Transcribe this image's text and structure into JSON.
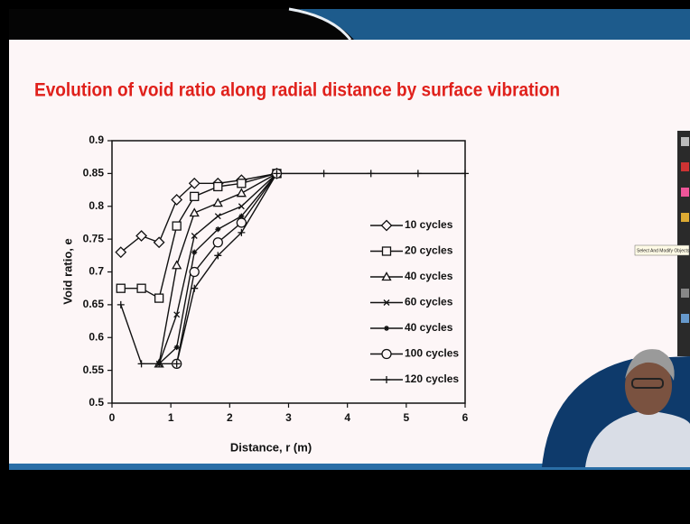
{
  "chart_data": {
    "type": "line",
    "title": "Evolution of void ratio along radial distance by surface vibration",
    "x_label": "Distance, r (m)",
    "y_label": "Void ratio, e",
    "x": [
      0.15,
      0.5,
      0.8,
      1.1,
      1.4,
      1.8,
      2.2,
      2.8,
      3.6,
      4.4,
      5.2,
      6.0
    ],
    "series": [
      {
        "name": "10 cycles",
        "marker": "diamond",
        "color": "#111111",
        "values": [
          0.73,
          0.755,
          0.745,
          0.81,
          0.835,
          0.835,
          0.84,
          0.85,
          null,
          null,
          null,
          null
        ]
      },
      {
        "name": "20 cycles",
        "marker": "square",
        "color": "#111111",
        "values": [
          0.675,
          0.675,
          0.66,
          0.77,
          0.815,
          0.83,
          0.835,
          0.85,
          null,
          null,
          null,
          null
        ]
      },
      {
        "name": "40 cycles",
        "marker": "triangle",
        "color": "#111111",
        "values": [
          null,
          null,
          0.56,
          0.71,
          0.79,
          0.805,
          0.82,
          0.85,
          null,
          null,
          null,
          null
        ]
      },
      {
        "name": "60 cycles",
        "marker": "x",
        "color": "#111111",
        "values": [
          null,
          null,
          0.56,
          0.635,
          0.755,
          0.785,
          0.8,
          0.85,
          null,
          null,
          null,
          null
        ]
      },
      {
        "name": "40 cycles",
        "marker": "star",
        "color": "#111111",
        "values": [
          null,
          null,
          0.56,
          0.585,
          0.73,
          0.765,
          0.785,
          0.85,
          null,
          null,
          null,
          null
        ]
      },
      {
        "name": "100 cycles",
        "marker": "circle",
        "color": "#111111",
        "values": [
          null,
          null,
          null,
          0.56,
          0.7,
          0.745,
          0.775,
          0.85,
          null,
          null,
          null,
          null
        ]
      },
      {
        "name": "120 cycles",
        "marker": "plus",
        "color": "#111111",
        "values": [
          0.65,
          0.56,
          0.56,
          0.56,
          0.675,
          0.725,
          0.76,
          0.85,
          0.85,
          0.85,
          0.85,
          0.85
        ]
      }
    ],
    "xlim": [
      0,
      6
    ],
    "xticks": [
      0,
      1,
      2,
      3,
      4,
      5,
      6
    ],
    "ylim": [
      0.5,
      0.9
    ],
    "yticks": [
      0.5,
      0.55,
      0.6,
      0.65,
      0.7,
      0.75,
      0.8,
      0.85,
      0.9
    ]
  },
  "toolbar_tooltip": "Select And Modify Objects"
}
